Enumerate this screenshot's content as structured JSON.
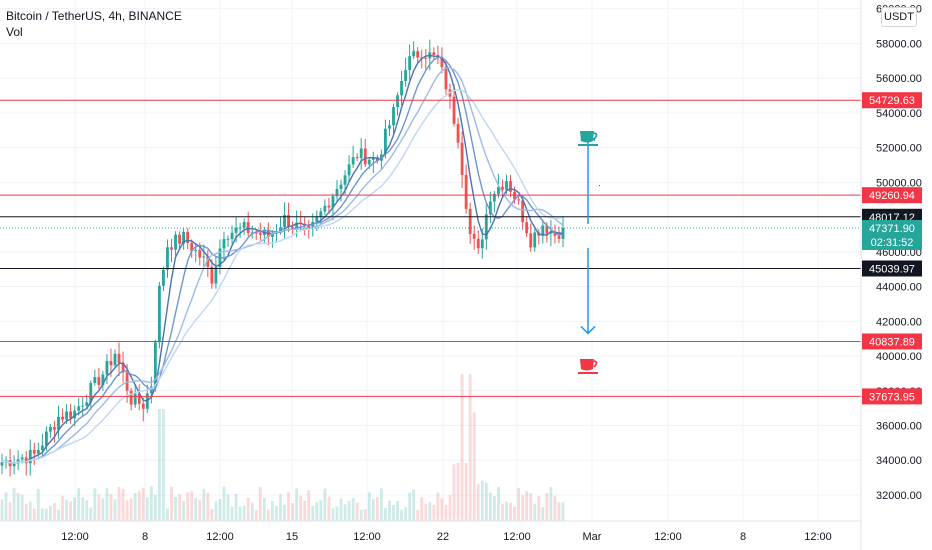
{
  "legend": {
    "symbol_line": "Bitcoin / TetherUS, 4h, BINANCE",
    "indicator": "Vol"
  },
  "price_axis": {
    "currency": "USDT",
    "ticks": [
      "60000.00",
      "58000.00",
      "56000.00",
      "54000.00",
      "52000.00",
      "50000.00",
      "48000.00",
      "46000.00",
      "44000.00",
      "42000.00",
      "40000.00",
      "38000.00",
      "36000.00",
      "34000.00",
      "32000.00"
    ]
  },
  "time_axis": {
    "ticks": [
      "12:00",
      "8",
      "12:00",
      "15",
      "12:00",
      "22",
      "12:00",
      "Mar",
      "12:00",
      "8",
      "12:00"
    ]
  },
  "levels": [
    {
      "price": 54729.63,
      "label": "54729.63",
      "color": "#f23645"
    },
    {
      "price": 49260.94,
      "label": "49260.94",
      "color": "#f23645"
    },
    {
      "price": 48017.12,
      "label": "48017.12",
      "color": "#131722"
    },
    {
      "price": 45039.97,
      "label": "45039.97",
      "color": "#131722"
    },
    {
      "price": 40837.89,
      "label": "40837.89",
      "color": "#f23645"
    },
    {
      "price": 37673.95,
      "label": "37673.95",
      "color": "#f23645"
    }
  ],
  "current_price": {
    "price": 47371.9,
    "label": "47371.90",
    "countdown": "02:31:52",
    "color": "#26a69a"
  },
  "annotations": {
    "up_cup_color": "#26a69a",
    "down_cup_color": "#f23645",
    "arrow_color": "#2196f3",
    "arrow_up_target": 52800,
    "arrow_down_target": 41300
  },
  "chart_data": {
    "type": "candlestick",
    "title": "Bitcoin / TetherUS, 4h, BINANCE",
    "ylim": [
      30500,
      60500
    ],
    "y_tick_step": 2000,
    "bar_count": 140,
    "ohlc_anchors": [
      {
        "t": 0,
        "close": 33900
      },
      {
        "t": 8,
        "close": 34300
      },
      {
        "t": 14,
        "close": 36500
      },
      {
        "t": 18,
        "close": 36800
      },
      {
        "t": 26,
        "close": 39300
      },
      {
        "t": 28,
        "close": 40200
      },
      {
        "t": 30,
        "close": 38900
      },
      {
        "t": 32,
        "close": 37500
      },
      {
        "t": 35,
        "close": 37200
      },
      {
        "t": 37,
        "close": 38400
      },
      {
        "t": 39,
        "close": 43800
      },
      {
        "t": 41,
        "close": 46400
      },
      {
        "t": 45,
        "close": 46800
      },
      {
        "t": 50,
        "close": 45500
      },
      {
        "t": 52,
        "close": 44500
      },
      {
        "t": 55,
        "close": 47100
      },
      {
        "t": 60,
        "close": 47300
      },
      {
        "t": 66,
        "close": 46900
      },
      {
        "t": 70,
        "close": 47900
      },
      {
        "t": 76,
        "close": 47000
      },
      {
        "t": 80,
        "close": 48600
      },
      {
        "t": 85,
        "close": 50500
      },
      {
        "t": 88,
        "close": 51600
      },
      {
        "t": 93,
        "close": 51300
      },
      {
        "t": 97,
        "close": 54000
      },
      {
        "t": 100,
        "close": 56800
      },
      {
        "t": 104,
        "close": 57600
      },
      {
        "t": 108,
        "close": 57000
      },
      {
        "t": 110,
        "close": 55600
      },
      {
        "t": 113,
        "close": 52700
      },
      {
        "t": 116,
        "close": 47000
      },
      {
        "t": 118,
        "close": 45900
      },
      {
        "t": 121,
        "close": 49300
      },
      {
        "t": 125,
        "close": 50200
      },
      {
        "t": 128,
        "close": 48700
      },
      {
        "t": 131,
        "close": 46700
      },
      {
        "t": 134,
        "close": 47600
      },
      {
        "t": 137,
        "close": 47000
      },
      {
        "t": 139,
        "close": 47372
      }
    ],
    "moving_average_periods": [
      5,
      9,
      14,
      21
    ],
    "moving_average_colors": [
      "#4a72b5",
      "#6f95cf",
      "#9cbbe6",
      "#c0d6f1"
    ]
  }
}
